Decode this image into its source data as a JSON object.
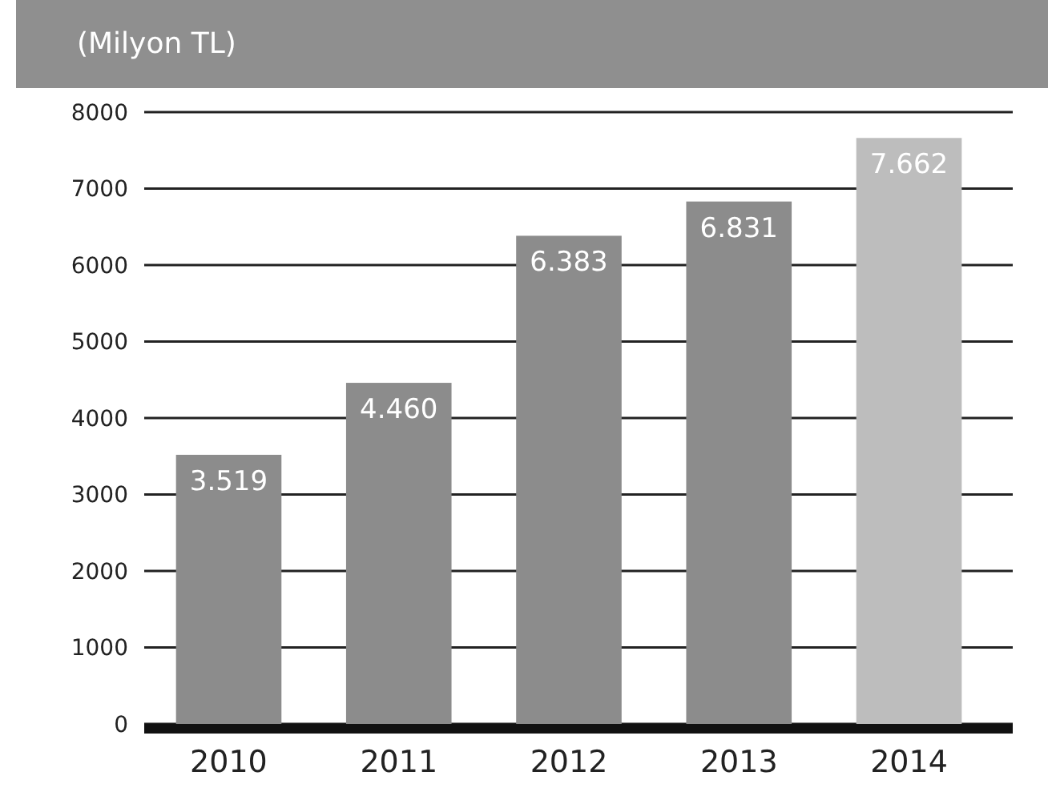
{
  "chart_data": {
    "type": "bar",
    "title": "(Milyon TL)",
    "categories": [
      "2010",
      "2011",
      "2012",
      "2013",
      "2014"
    ],
    "values": [
      3519,
      4460,
      6383,
      6831,
      7662
    ],
    "colors": [
      "#8c8c8c",
      "#8c8c8c",
      "#8c8c8c",
      "#8c8c8c",
      "#bdbdbd"
    ],
    "value_labels": [
      "3.519",
      "4.460",
      "6.383",
      "6.831",
      "7.662"
    ],
    "ylim": [
      0,
      8000
    ],
    "yticks": [
      0,
      1000,
      2000,
      3000,
      4000,
      5000,
      6000,
      7000,
      8000
    ],
    "grid": "y"
  }
}
